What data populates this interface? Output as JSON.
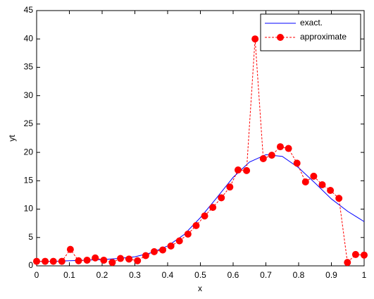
{
  "chart_data": {
    "type": "line",
    "xlabel": "x",
    "ylabel": "yt",
    "xlim": [
      0,
      1
    ],
    "ylim": [
      0,
      45
    ],
    "xticks": [
      0,
      0.1,
      0.2,
      0.3,
      0.4,
      0.5,
      0.6,
      0.7,
      0.8,
      0.9,
      1
    ],
    "yticks": [
      0,
      5,
      10,
      15,
      20,
      25,
      30,
      35,
      40,
      45
    ],
    "grid": false,
    "legend": "upper right",
    "series": [
      {
        "name": "exact.",
        "color": "#0000ff",
        "linestyle": "solid",
        "marker": "none",
        "x": [
          0,
          0.05,
          0.1,
          0.15,
          0.2,
          0.25,
          0.3,
          0.35,
          0.4,
          0.45,
          0.5,
          0.55,
          0.6,
          0.65,
          0.7,
          0.75,
          0.8,
          0.85,
          0.9,
          0.95,
          1
        ],
        "values": [
          0.8,
          0.8,
          0.9,
          1.0,
          1.1,
          1.3,
          1.6,
          2.3,
          3.5,
          5.5,
          8.5,
          12.0,
          15.6,
          18.3,
          19.6,
          19.3,
          17.3,
          14.6,
          11.8,
          9.6,
          7.8
        ]
      },
      {
        "name": "approximate",
        "color": "#ff0000",
        "linestyle": "dashed",
        "marker": "circle",
        "x": [
          0,
          0.026,
          0.051,
          0.077,
          0.103,
          0.128,
          0.154,
          0.179,
          0.205,
          0.231,
          0.256,
          0.282,
          0.308,
          0.333,
          0.359,
          0.385,
          0.41,
          0.436,
          0.462,
          0.487,
          0.513,
          0.538,
          0.564,
          0.59,
          0.615,
          0.641,
          0.667,
          0.692,
          0.718,
          0.744,
          0.769,
          0.795,
          0.821,
          0.846,
          0.872,
          0.897,
          0.923,
          0.949,
          0.974,
          1
        ],
        "values": [
          0.8,
          0.8,
          0.8,
          0.8,
          2.9,
          0.9,
          1.0,
          1.4,
          1.0,
          0.6,
          1.3,
          1.2,
          0.9,
          1.8,
          2.5,
          2.8,
          3.5,
          4.4,
          5.6,
          7.1,
          8.8,
          10.3,
          12.0,
          13.9,
          16.9,
          16.8,
          40.0,
          18.9,
          19.5,
          21.0,
          20.7,
          18.1,
          14.8,
          15.8,
          14.3,
          13.3,
          11.9,
          0.6,
          2.0,
          1.9
        ]
      }
    ]
  }
}
